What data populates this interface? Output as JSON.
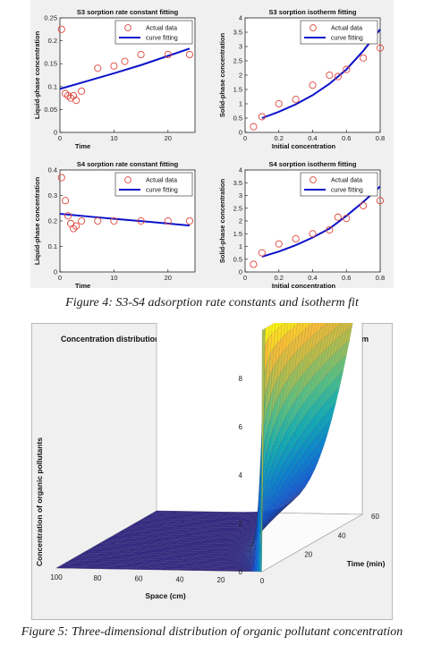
{
  "chart_data": [
    {
      "type": "scatter",
      "title": "S3 sorption rate constant fitting",
      "xlabel": "Time",
      "ylabel": "Liquid-phase concentration",
      "xlim": [
        0,
        25
      ],
      "ylim": [
        0,
        0.25
      ],
      "xticks": [
        "0",
        "10",
        "20"
      ],
      "yticks": [
        "0",
        "0.05",
        "0.1",
        "0.15",
        "0.2",
        "0.25"
      ],
      "legend": {
        "placement": "top-right",
        "entries": [
          "Actual data",
          "curve fitting"
        ]
      },
      "series": [
        {
          "name": "Actual data",
          "kind": "scatter",
          "x": [
            0.3,
            1.0,
            1.5,
            2.0,
            2.5,
            3.0,
            4.0,
            7.0,
            10.0,
            12.0,
            15.0,
            20.0,
            24.0
          ],
          "y": [
            0.225,
            0.085,
            0.08,
            0.075,
            0.08,
            0.07,
            0.09,
            0.14,
            0.145,
            0.155,
            0.17,
            0.17,
            0.17
          ]
        },
        {
          "name": "curve fitting",
          "kind": "line",
          "x": [
            0,
            5,
            10,
            15,
            20,
            24
          ],
          "y": [
            0.095,
            0.112,
            0.129,
            0.147,
            0.167,
            0.183
          ]
        }
      ]
    },
    {
      "type": "scatter",
      "title": "S3 sorption isotherm fitting",
      "xlabel": "Initial concentration",
      "ylabel": "Solid-phase concentration",
      "xlim": [
        0,
        0.8
      ],
      "ylim": [
        0,
        4
      ],
      "xticks": [
        "0",
        "0.2",
        "0.4",
        "0.6",
        "0.8"
      ],
      "yticks": [
        "0",
        "0.5",
        "1",
        "1.5",
        "2",
        "2.5",
        "3",
        "3.5",
        "4"
      ],
      "legend": {
        "placement": "top-right",
        "entries": [
          "Actual data",
          "curve fitting"
        ]
      },
      "series": [
        {
          "name": "Actual data",
          "kind": "scatter",
          "x": [
            0.05,
            0.1,
            0.2,
            0.3,
            0.4,
            0.5,
            0.55,
            0.6,
            0.7,
            0.8
          ],
          "y": [
            0.2,
            0.55,
            1.0,
            1.15,
            1.65,
            2.0,
            1.95,
            2.2,
            2.6,
            2.95
          ]
        },
        {
          "name": "curve fitting",
          "kind": "line",
          "x": [
            0.1,
            0.2,
            0.3,
            0.4,
            0.5,
            0.6,
            0.7,
            0.8
          ],
          "y": [
            0.5,
            0.72,
            0.98,
            1.3,
            1.7,
            2.2,
            2.85,
            3.6
          ]
        }
      ]
    },
    {
      "type": "scatter",
      "title": "S4 sorption rate constant fitting",
      "xlabel": "Time",
      "ylabel": "Liquid-phase concentration",
      "xlim": [
        0,
        25
      ],
      "ylim": [
        0,
        0.4
      ],
      "xticks": [
        "0",
        "10",
        "20"
      ],
      "yticks": [
        "0",
        "0.1",
        "0.2",
        "0.3",
        "0.4"
      ],
      "legend": {
        "placement": "top-right",
        "entries": [
          "Actual data",
          "curve fitting"
        ]
      },
      "series": [
        {
          "name": "Actual data",
          "kind": "scatter",
          "x": [
            0.3,
            1.0,
            1.5,
            2.0,
            2.5,
            3.0,
            4.0,
            7.0,
            10.0,
            15.0,
            20.0,
            24.0
          ],
          "y": [
            0.37,
            0.28,
            0.22,
            0.19,
            0.17,
            0.18,
            0.2,
            0.2,
            0.2,
            0.2,
            0.2,
            0.2
          ]
        },
        {
          "name": "curve fitting",
          "kind": "line",
          "x": [
            0,
            6,
            12,
            18,
            24
          ],
          "y": [
            0.228,
            0.216,
            0.205,
            0.194,
            0.182
          ]
        }
      ]
    },
    {
      "type": "scatter",
      "title": "S4 sorption isotherm fitting",
      "xlabel": "Initial concentration",
      "ylabel": "Solid-phase concentration",
      "xlim": [
        0,
        0.8
      ],
      "ylim": [
        0,
        4
      ],
      "xticks": [
        "0",
        "0.2",
        "0.4",
        "0.6",
        "0.8"
      ],
      "yticks": [
        "0",
        "0.5",
        "1",
        "1.5",
        "2",
        "2.5",
        "3",
        "3.5",
        "4"
      ],
      "legend": {
        "placement": "top-right",
        "entries": [
          "Actual data",
          "curve fitting"
        ]
      },
      "series": [
        {
          "name": "Actual data",
          "kind": "scatter",
          "x": [
            0.05,
            0.1,
            0.2,
            0.3,
            0.4,
            0.5,
            0.55,
            0.6,
            0.7,
            0.8
          ],
          "y": [
            0.3,
            0.75,
            1.1,
            1.3,
            1.5,
            1.65,
            2.15,
            2.1,
            2.6,
            2.8
          ]
        },
        {
          "name": "curve fitting",
          "kind": "line",
          "x": [
            0.1,
            0.2,
            0.3,
            0.4,
            0.5,
            0.6,
            0.7,
            0.8
          ],
          "y": [
            0.6,
            0.8,
            1.05,
            1.35,
            1.7,
            2.2,
            2.75,
            3.35
          ]
        }
      ]
    },
    {
      "type": "surface",
      "title": "Concentration distribution of an organic pollutant in the river-groundwater system",
      "xlabel": "Space (cm)",
      "ylabel": "Time (min)",
      "zlabel": "Concentration of organic pollutants",
      "xlim": [
        0,
        100
      ],
      "ylim": [
        0,
        60
      ],
      "zlim": [
        0,
        10
      ],
      "xticks": [
        "100",
        "80",
        "60",
        "40",
        "20",
        "0"
      ],
      "yticks": [
        "20",
        "40",
        "60"
      ],
      "zticks": [
        "0",
        "2",
        "4",
        "6",
        "8"
      ],
      "colormap": "parula",
      "description_values": {
        "boundary_concentration": 10,
        "initial_concentration": 0
      }
    }
  ],
  "captions": {
    "figure4": "Figure 4: S3-S4 adsorption rate constants and isotherm fit",
    "figure5": "Figure 5: Three-dimensional distribution of organic pollutant concentration"
  }
}
